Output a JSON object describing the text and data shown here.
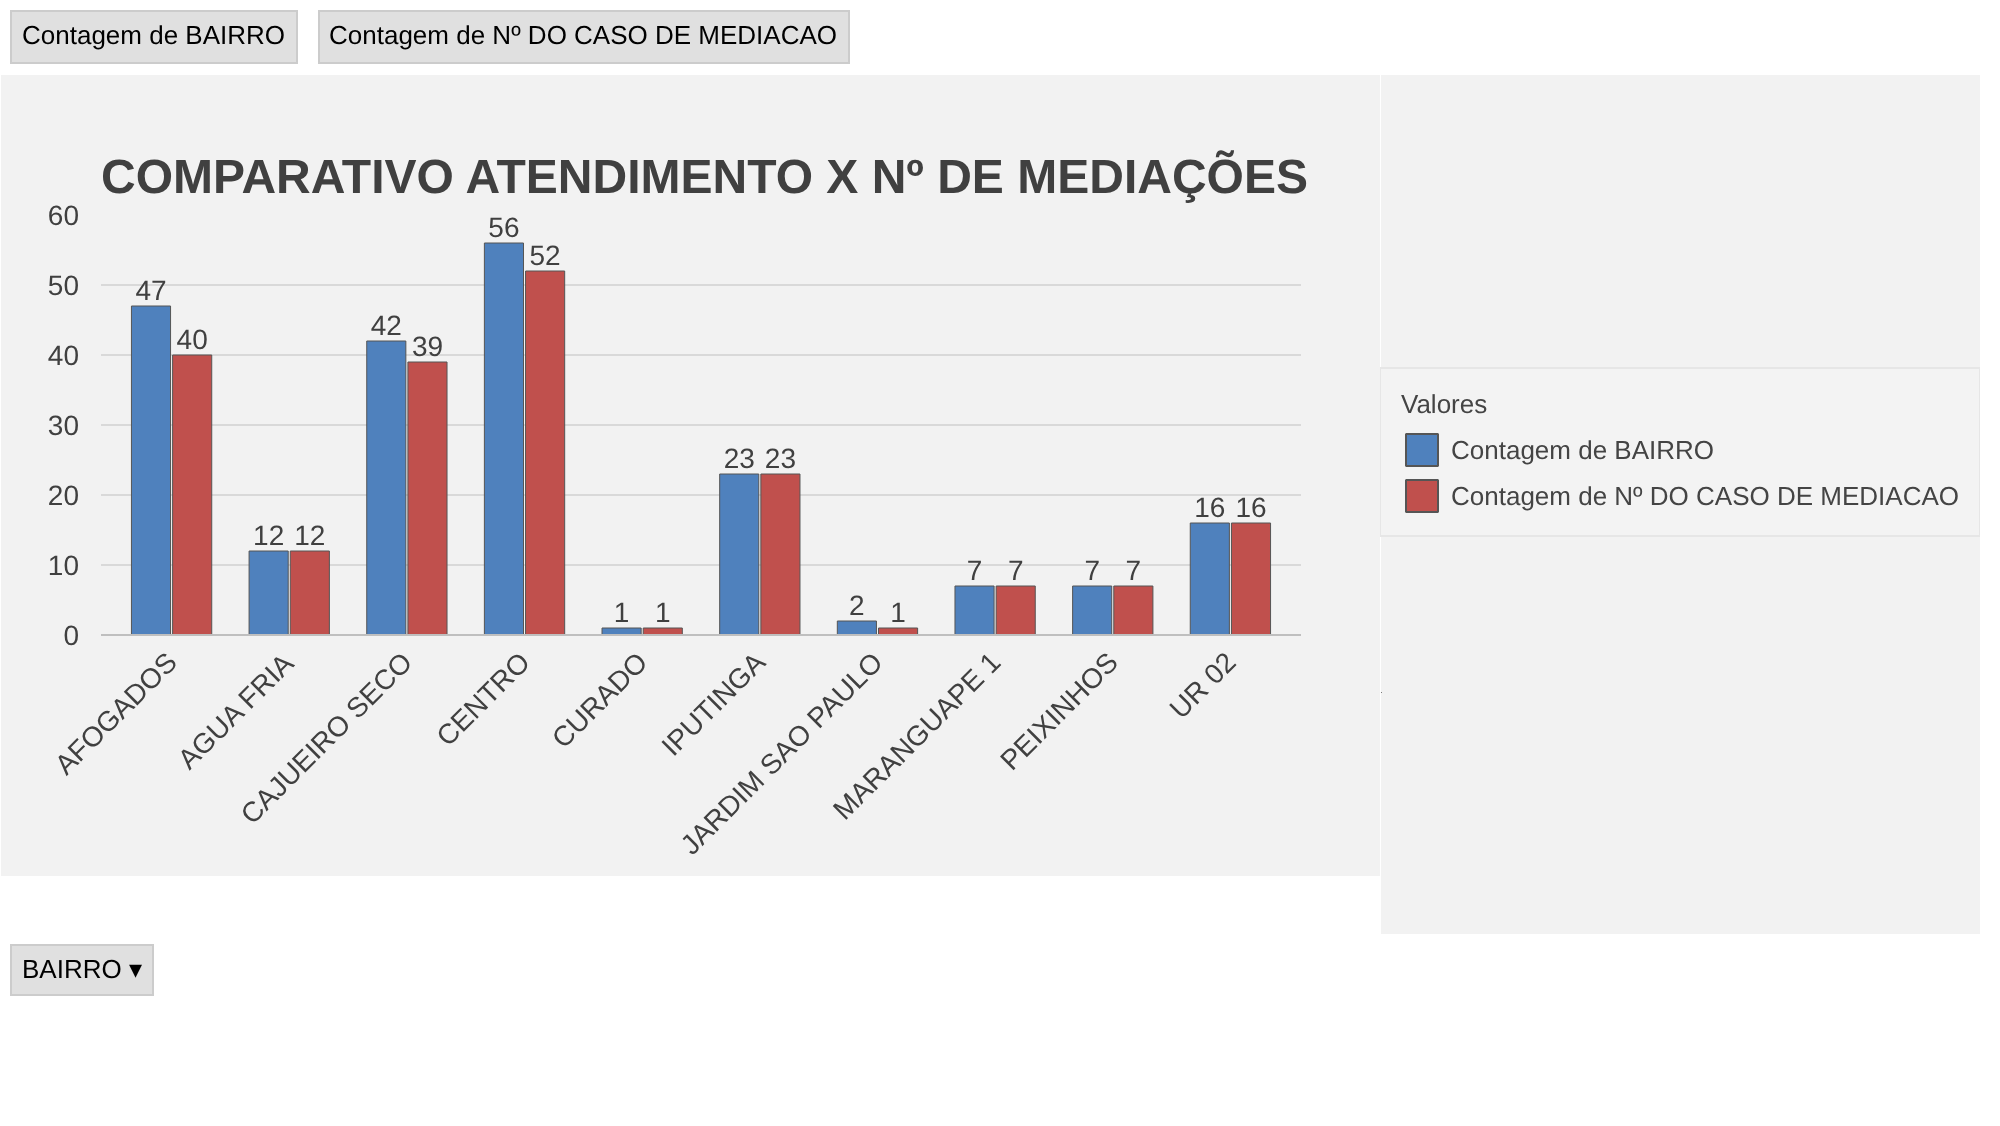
{
  "chart_data": {
    "type": "bar",
    "title": "COMPARATIVO ATENDIMENTO X Nº DE MEDIAÇÕES",
    "categories": [
      "AFOGADOS",
      "AGUA FRIA",
      "CAJUEIRO SECO",
      "CENTRO",
      "CURADO",
      "IPUTINGA",
      "JARDIM SAO PAULO",
      "MARANGUAPE 1",
      "PEIXINHOS",
      "UR 02"
    ],
    "series": [
      {
        "name": "Contagem de BAIRRO",
        "color": "#4f81bd",
        "values": [
          47,
          12,
          42,
          56,
          1,
          23,
          2,
          7,
          7,
          16
        ]
      },
      {
        "name": "Contagem de Nº DO CASO DE MEDIACAO",
        "color": "#c0504d",
        "values": [
          40,
          12,
          39,
          52,
          1,
          23,
          1,
          7,
          7,
          16
        ]
      }
    ],
    "ylim": [
      0,
      60
    ],
    "yticks": [
      0,
      10,
      20,
      30,
      40,
      50,
      60
    ],
    "grid": "y",
    "legend": "right",
    "legend_title": "Valores",
    "data_labels": true,
    "annotations": [
      "Contagem de BAIRRO",
      "Contagem de Nº DO CASO DE MEDIACAO",
      "BAIRRO ▾"
    ]
  }
}
